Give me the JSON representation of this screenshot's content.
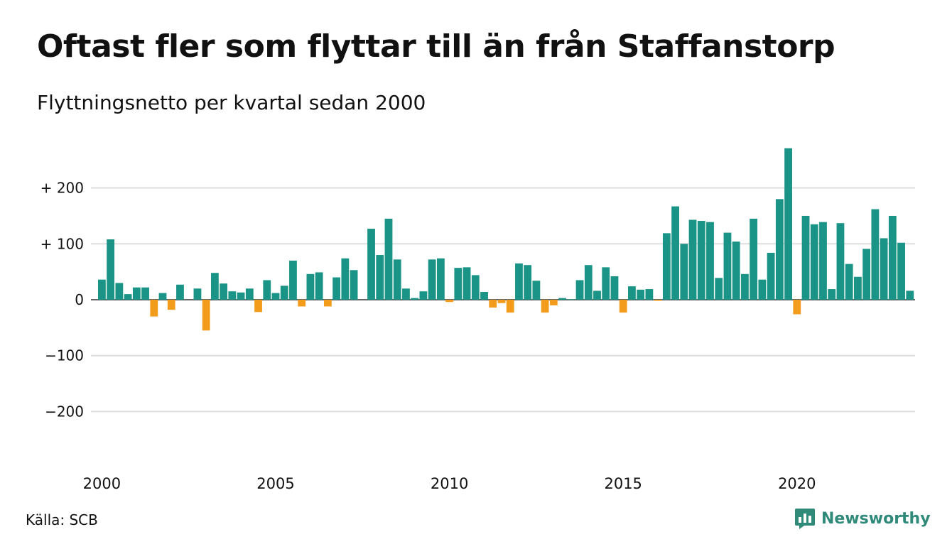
{
  "title": "Oftast fler som flyttar till än från Staffanstorp",
  "subtitle": "Flyttningsnetto per kvartal sedan 2000",
  "source": "Källa: SCB",
  "brand": "Newsworthy",
  "colors": {
    "positive": "#1a9486",
    "negative": "#f39c1c",
    "grid": "#dddddd",
    "brand": "#2f8a7a"
  },
  "chart_data": {
    "type": "bar",
    "ylim": [
      -260,
      280
    ],
    "yticks": [
      {
        "value": 200,
        "label": "+ 200"
      },
      {
        "value": 100,
        "label": "+ 100"
      },
      {
        "value": 0,
        "label": "0"
      },
      {
        "value": -100,
        "label": "−100"
      },
      {
        "value": -200,
        "label": "−200"
      }
    ],
    "xticks": [
      {
        "index": 0,
        "label": "2000"
      },
      {
        "index": 20,
        "label": "2005"
      },
      {
        "index": 40,
        "label": "2010"
      },
      {
        "index": 60,
        "label": "2015"
      },
      {
        "index": 80,
        "label": "2020"
      }
    ],
    "first_period": "2000 Q1",
    "values": [
      36,
      108,
      30,
      10,
      22,
      22,
      -30,
      12,
      -18,
      27,
      0,
      20,
      -55,
      48,
      29,
      15,
      13,
      20,
      -22,
      35,
      12,
      25,
      70,
      -12,
      46,
      49,
      -12,
      40,
      74,
      53,
      0,
      127,
      80,
      145,
      72,
      20,
      3,
      15,
      72,
      74,
      -4,
      57,
      58,
      44,
      14,
      -14,
      -6,
      -23,
      65,
      62,
      34,
      -23,
      -10,
      3,
      1,
      35,
      62,
      16,
      58,
      42,
      -23,
      24,
      18,
      19,
      -2,
      119,
      167,
      100,
      143,
      141,
      139,
      39,
      120,
      104,
      46,
      145,
      36,
      84,
      180,
      271,
      -26,
      150,
      135,
      139,
      19,
      137,
      64,
      41,
      91,
      162,
      110,
      150,
      102,
      16
    ]
  }
}
